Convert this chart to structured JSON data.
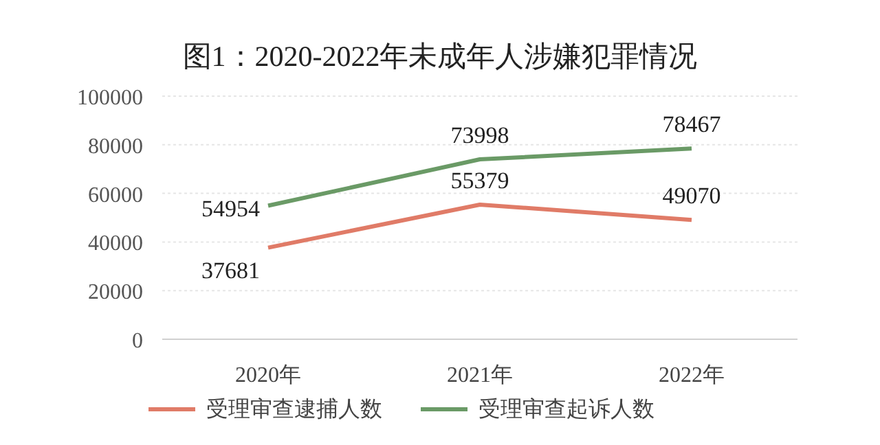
{
  "chart_data": {
    "type": "line",
    "title": "图1：2020-2022年未成年人涉嫌犯罪情况",
    "categories": [
      "2020年",
      "2021年",
      "2022年"
    ],
    "series": [
      {
        "name": "受理审查逮捕人数",
        "color": "#e07b67",
        "values": [
          37681,
          55379,
          49070
        ]
      },
      {
        "name": "受理审查起诉人数",
        "color": "#6a9a66",
        "values": [
          54954,
          73998,
          78467
        ]
      }
    ],
    "ylim": [
      0,
      100000
    ],
    "yticks": [
      0,
      20000,
      40000,
      60000,
      80000,
      100000
    ],
    "grid": "y",
    "legend": "bottom",
    "data_labels": true
  }
}
